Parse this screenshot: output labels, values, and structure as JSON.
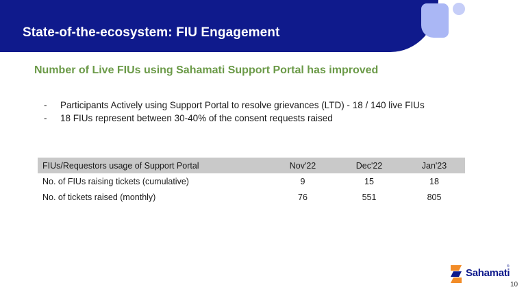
{
  "slide": {
    "title": "State-of-the-ecosystem: FIU Engagement",
    "subtitle": "Number of Live FIUs using Sahamati Support Portal has improved",
    "bullets": [
      "Participants Actively using Support Portal to resolve grievances (LTD) - 18 / 140 live FIUs",
      "18 FIUs represent between 30-40% of the consent requests raised"
    ],
    "bullet_marker": "-",
    "page_number": "10"
  },
  "table": {
    "headers": [
      "FIUs/Requestors usage of Support Portal",
      "Nov'22",
      "Dec'22",
      "Jan'23"
    ],
    "rows": [
      [
        "No. of FIUs raising tickets (cumulative)",
        "9",
        "15",
        "18"
      ],
      [
        "No. of tickets raised (monthly)",
        "76",
        "551",
        "805"
      ]
    ]
  },
  "logo": {
    "text": "Sahamati",
    "tm": "®"
  },
  "colors": {
    "banner": "#0f1a8c",
    "subtitle": "#6b9a48",
    "table_header_bg": "#c9c9c9",
    "logo_orange": "#f28c28",
    "logo_blue": "#0f1a8c"
  }
}
